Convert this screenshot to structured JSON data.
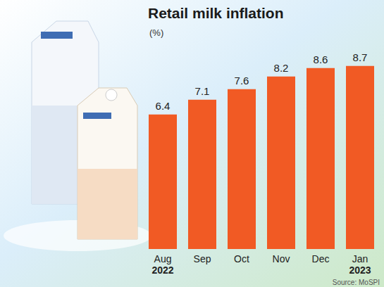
{
  "chart_data": {
    "type": "bar",
    "title": "Retail milk inflation",
    "subtitle": "(%)",
    "categories": [
      "Aug",
      "Sep",
      "Oct",
      "Nov",
      "Dec",
      "Jan"
    ],
    "category_sublabels": [
      "2022",
      null,
      null,
      null,
      null,
      "2023"
    ],
    "values": [
      6.4,
      7.1,
      7.6,
      8.2,
      8.6,
      8.7
    ],
    "color": "#f15a24",
    "ylim": [
      0,
      10
    ],
    "data_labels": true,
    "tick_labels": "x",
    "grid": false,
    "source": "Source: MoSPI"
  }
}
